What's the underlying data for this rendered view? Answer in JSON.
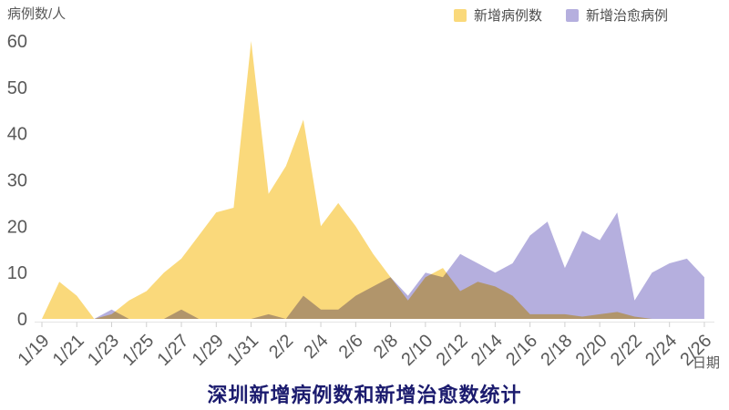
{
  "chart_data": {
    "type": "area",
    "title": "深圳新增病例数和新增治愈数统计",
    "y_axis_label": "病例数/人",
    "x_axis_label": "日期",
    "ylim": [
      0,
      60
    ],
    "y_ticks": [
      0,
      10,
      20,
      30,
      40,
      50,
      60
    ],
    "grid": false,
    "legend_position": "top-right",
    "x": [
      "1/19",
      "1/20",
      "1/21",
      "1/22",
      "1/23",
      "1/24",
      "1/25",
      "1/26",
      "1/27",
      "1/28",
      "1/29",
      "1/30",
      "1/31",
      "2/1",
      "2/2",
      "2/3",
      "2/4",
      "2/5",
      "2/6",
      "2/7",
      "2/8",
      "2/9",
      "2/10",
      "2/11",
      "2/12",
      "2/13",
      "2/14",
      "2/15",
      "2/16",
      "2/17",
      "2/18",
      "2/19",
      "2/20",
      "2/21",
      "2/22",
      "2/23",
      "2/24",
      "2/25",
      "2/26"
    ],
    "x_tick_labels": [
      "1/19",
      "1/21",
      "1/23",
      "1/25",
      "1/27",
      "1/29",
      "1/31",
      "2/2",
      "2/4",
      "2/6",
      "2/8",
      "2/10",
      "2/12",
      "2/14",
      "2/16",
      "2/18",
      "2/20",
      "2/22",
      "2/24",
      "2/26"
    ],
    "series": [
      {
        "name": "新增病例数",
        "color": "#FAD97B",
        "values": [
          0,
          8,
          5,
          0,
          1,
          4,
          6,
          10,
          13,
          18,
          23,
          24,
          60,
          27,
          33,
          43,
          20,
          25,
          20,
          14,
          9,
          4,
          9,
          11,
          6,
          8,
          7,
          5,
          1,
          1,
          1,
          0.5,
          1,
          1.5,
          0.5,
          0,
          0,
          0,
          0
        ]
      },
      {
        "name": "新增治愈病例",
        "color": "#B5AFDE",
        "values": [
          0,
          0,
          0,
          0,
          2,
          0,
          0,
          0,
          2,
          0,
          0,
          0,
          0,
          1,
          0,
          5,
          2,
          2,
          5,
          7,
          9,
          5,
          10,
          9,
          14,
          12,
          10,
          12,
          18,
          21,
          11,
          19,
          17,
          23,
          4,
          10,
          12,
          13,
          9
        ]
      }
    ]
  },
  "styles": {
    "title_color": "#1B1B6E",
    "axis_text_color": "#595959",
    "legend_text_color": "#4D4D4D",
    "axis_line_color": "#E4E4E4",
    "tick_mark_color": "#CFCFCF",
    "background": "#FFFFFF"
  }
}
